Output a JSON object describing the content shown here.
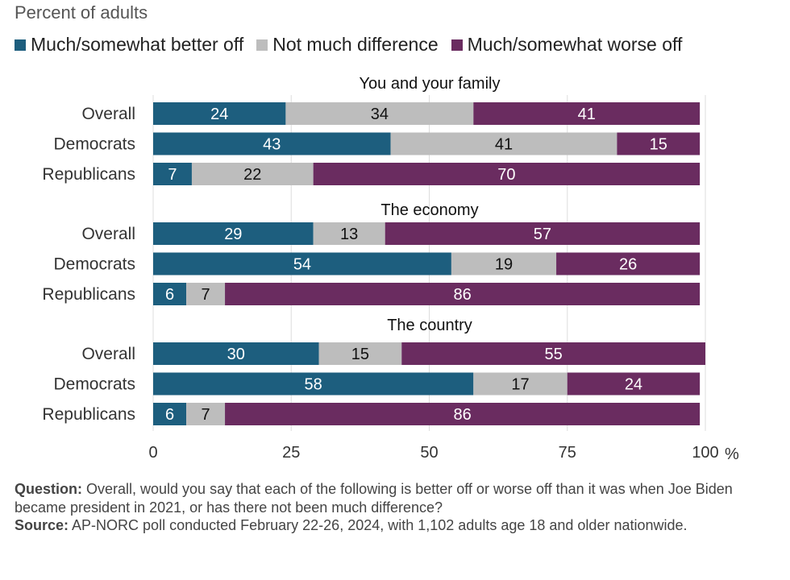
{
  "chart_data": {
    "type": "bar",
    "orientation": "horizontal",
    "stacked": true,
    "subtitle": "Percent of adults",
    "series": [
      {
        "name": "Much/somewhat better off",
        "color": "#1d5e7e"
      },
      {
        "name": "Not much difference",
        "color": "#bdbdbd"
      },
      {
        "name": "Much/somewhat worse off",
        "color": "#6a2c60"
      }
    ],
    "panels": [
      {
        "title": "You and your family",
        "rows": [
          {
            "label": "Overall",
            "values": [
              24,
              34,
              41
            ]
          },
          {
            "label": "Democrats",
            "values": [
              43,
              41,
              15
            ]
          },
          {
            "label": "Republicans",
            "values": [
              7,
              22,
              70
            ]
          }
        ]
      },
      {
        "title": "The economy",
        "rows": [
          {
            "label": "Overall",
            "values": [
              29,
              13,
              57
            ]
          },
          {
            "label": "Democrats",
            "values": [
              54,
              19,
              26
            ]
          },
          {
            "label": "Republicans",
            "values": [
              6,
              7,
              86
            ]
          }
        ]
      },
      {
        "title": "The country",
        "rows": [
          {
            "label": "Overall",
            "values": [
              30,
              15,
              55
            ]
          },
          {
            "label": "Democrats",
            "values": [
              58,
              17,
              24
            ]
          },
          {
            "label": "Republicans",
            "values": [
              6,
              7,
              86
            ]
          }
        ]
      }
    ],
    "xlim": [
      0,
      100
    ],
    "xticks": [
      0,
      25,
      50,
      75,
      100
    ],
    "xunit": "%",
    "grid": true
  },
  "footer": {
    "question_label": "Question:",
    "question_text": " Overall, would you say that each of the following is better off or worse off than it was when Joe Biden became president in 2021, or has there not been much difference?",
    "source_label": "Source:",
    "source_text": " AP-NORC poll conducted February 22-26, 2024, with 1,102 adults age 18 and older nationwide."
  }
}
